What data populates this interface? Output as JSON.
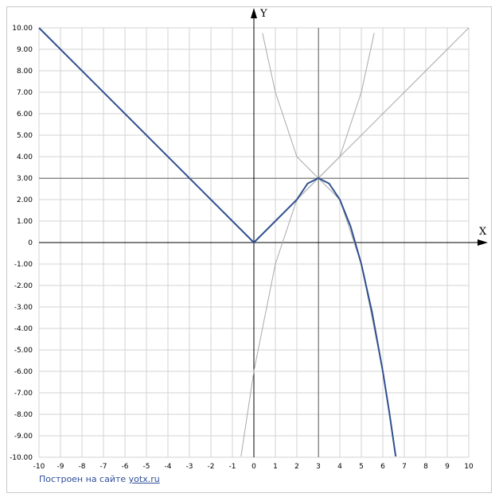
{
  "chart_data": {
    "type": "line",
    "x_axis_label": "X",
    "y_axis_label": "Y",
    "xlim": [
      -10,
      10
    ],
    "ylim": [
      -10,
      10
    ],
    "x_ticks": [
      "-10",
      "-9",
      "-8",
      "-7",
      "-6",
      "-5",
      "-4",
      "-3",
      "-2",
      "-1",
      "0",
      "1",
      "2",
      "3",
      "4",
      "5",
      "6",
      "7",
      "8",
      "9",
      "10"
    ],
    "y_ticks": [
      "10.00",
      "9.00",
      "8.00",
      "7.00",
      "6.00",
      "5.00",
      "4.00",
      "3.00",
      "2.00",
      "1.00",
      "0",
      "-1.00",
      "-2.00",
      "-3.00",
      "-4.00",
      "-5.00",
      "-6.00",
      "-7.00",
      "-8.00",
      "-9.00",
      "-10.00"
    ],
    "grid": true,
    "highlight_lines": {
      "vertical_x": 3,
      "horizontal_y": 3
    },
    "series": [
      {
        "role": "thin_helper",
        "color": "#a9a9a9",
        "x": [
          0,
          10
        ],
        "y": [
          0,
          10
        ]
      },
      {
        "role": "thin_helper",
        "color": "#a9a9a9",
        "x": [
          0.4,
          1,
          2,
          3,
          4,
          5,
          5.6
        ],
        "y": [
          9.76,
          7,
          4,
          3,
          4,
          7,
          9.76
        ]
      },
      {
        "role": "thin_helper",
        "color": "#a9a9a9",
        "x": [
          -0.6,
          0,
          1,
          2,
          3,
          4,
          5,
          6,
          6.6
        ],
        "y": [
          -9.96,
          -6,
          -1,
          2,
          3,
          2,
          -1,
          -6,
          -9.96
        ]
      },
      {
        "role": "main",
        "color": "#2f4f8f",
        "x": [
          -10,
          0,
          2,
          2.5,
          3,
          3.5,
          4,
          4.5,
          5,
          5.5,
          6,
          6.3,
          6.6
        ],
        "y": [
          10,
          0,
          2,
          2.75,
          3,
          2.75,
          2,
          0.75,
          -1,
          -3.25,
          -6,
          -7.89,
          -9.96
        ]
      }
    ]
  },
  "footer": {
    "text": "Построен на сайте",
    "link_text": "yotx.ru"
  },
  "colors": {
    "grid": "#d3d3d3",
    "axis": "#000000",
    "main_curve": "#2f4f8f",
    "helper_curve": "#a9a9a9",
    "highlight_line": "#8c8c8c",
    "footer_text": "#2f4f9a"
  }
}
